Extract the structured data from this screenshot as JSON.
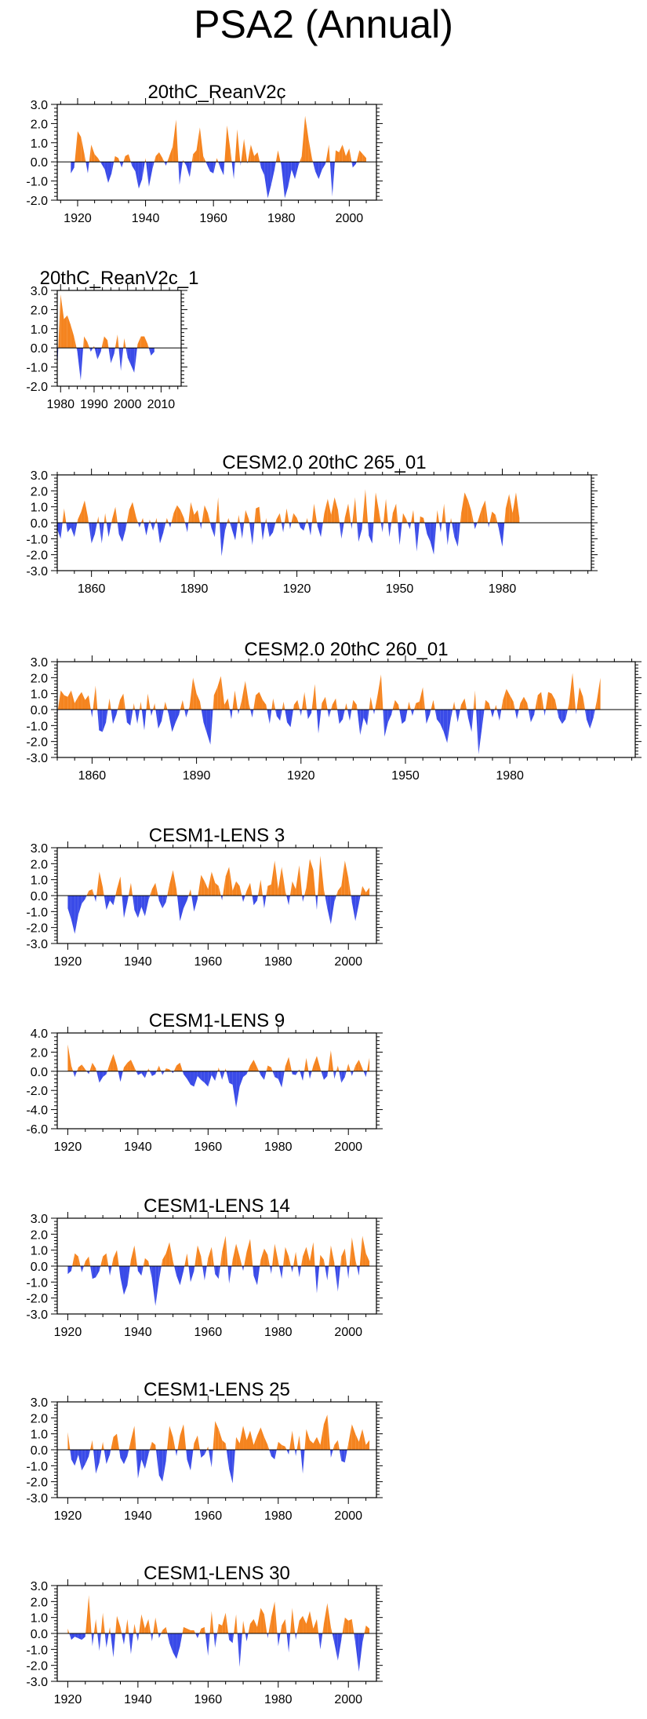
{
  "page": {
    "title": "PSA2 (Annual)"
  },
  "colors": {
    "positive": "#f5841f",
    "negative": "#3a4be8",
    "axis": "#000000"
  },
  "chart_data": [
    {
      "type": "area",
      "title": "20thC_ReanV2c",
      "xlim": [
        1914,
        2008
      ],
      "ylim": [
        -2.0,
        3.0
      ],
      "xticks": [
        1920,
        1940,
        1960,
        1980,
        2000
      ],
      "xtick_labels": [
        "1920",
        "1940",
        "1960",
        "1980",
        "2000"
      ],
      "yticks": [
        -2,
        -1,
        0,
        1,
        2,
        3
      ],
      "ytick_labels": [
        "-2.0",
        "-1.0",
        "0.0",
        "1.0",
        "2.0",
        "3.0"
      ],
      "x_start": 1918,
      "values": [
        -0.6,
        -0.3,
        1.6,
        1.3,
        0.4,
        -0.6,
        0.9,
        0.4,
        0.2,
        -0.1,
        -0.4,
        -1.1,
        -0.6,
        0.3,
        0.2,
        -0.3,
        0.3,
        0.4,
        -0.2,
        -0.5,
        -1.4,
        -0.9,
        0.2,
        -1.3,
        -0.4,
        0.3,
        0.5,
        0.2,
        -0.2,
        0.3,
        0.8,
        2.2,
        -1.2,
        0.1,
        -0.2,
        -0.8,
        0.4,
        0.6,
        1.8,
        0.3,
        -0.1,
        -0.5,
        -0.6,
        0.2,
        -0.3,
        -0.7,
        1.9,
        0.6,
        -0.9,
        1.7,
        -0.2,
        1.2,
        -0.1,
        0.9,
        0.3,
        0.5,
        -0.3,
        -0.7,
        -1.9,
        -1.2,
        -0.4,
        0.6,
        -0.2,
        -1.9,
        -1.3,
        -0.4,
        -0.9,
        -0.2,
        0.3,
        2.4,
        1.2,
        0.2,
        -0.5,
        -0.9,
        -0.4,
        -0.1,
        0.9,
        -1.8,
        0.6,
        0.5,
        0.9,
        0.3,
        0.7,
        -0.3,
        -0.1,
        0.6,
        0.4,
        0.2
      ]
    },
    {
      "type": "area",
      "title": "20thC_ReanV2c_1",
      "xlim": [
        1979,
        2016
      ],
      "ylim": [
        -2.0,
        3.0
      ],
      "xticks": [
        1980,
        1990,
        2000,
        2010
      ],
      "xtick_labels": [
        "1980",
        "1990",
        "2000",
        "2010"
      ],
      "yticks": [
        -2,
        -1,
        0,
        1,
        2,
        3
      ],
      "ytick_labels": [
        "-2.0",
        "-1.0",
        "0.0",
        "1.0",
        "2.0",
        "3.0"
      ],
      "x_start": 1979,
      "values": [
        -1.2,
        2.8,
        1.5,
        1.7,
        1.2,
        0.6,
        -0.2,
        -1.7,
        0.6,
        0.3,
        -0.2,
        0.1,
        -0.6,
        -0.2,
        0.6,
        0.4,
        -0.8,
        -0.3,
        0.7,
        -1.2,
        0.5,
        -0.5,
        -0.9,
        -1.3,
        0.2,
        0.6,
        0.6,
        0.2,
        -0.4,
        -0.2
      ]
    },
    {
      "type": "area",
      "title": "CESM2.0 20thC 265_01",
      "xlim": [
        1850,
        2006
      ],
      "ylim": [
        -3.0,
        3.0
      ],
      "xticks": [
        1860,
        1890,
        1920,
        1950,
        1980
      ],
      "xtick_labels": [
        "1860",
        "1890",
        "1920",
        "1950",
        "1980"
      ],
      "yticks": [
        -3,
        -2,
        -1,
        0,
        1,
        2,
        3
      ],
      "ytick_labels": [
        "-3.0",
        "-2.0",
        "-1.0",
        "0.0",
        "1.0",
        "2.0",
        "3.0"
      ],
      "x_start": 1850,
      "values": [
        -0.4,
        -1.0,
        0.9,
        -0.6,
        -0.3,
        -0.9,
        0.2,
        0.7,
        1.4,
        0.3,
        -1.3,
        -0.7,
        0.4,
        -1.3,
        0.6,
        -0.9,
        0.2,
        1.0,
        -0.7,
        -1.2,
        -0.4,
        0.8,
        1.3,
        0.4,
        -0.3,
        0.3,
        -0.8,
        0.2,
        -0.5,
        0.3,
        -1.3,
        -0.6,
        0.3,
        -0.3,
        0.6,
        1.1,
        0.8,
        0.3,
        -0.6,
        1.3,
        0.5,
        0.8,
        -0.4,
        1.1,
        0.6,
        -0.3,
        -0.9,
        1.6,
        -2.1,
        -0.5,
        0.3,
        -0.4,
        -1.1,
        0.5,
        -1.0,
        0.8,
        0.2,
        -1.4,
        0.9,
        1.0,
        -1.1,
        0.3,
        -0.9,
        -0.6,
        0.2,
        0.6,
        -0.6,
        0.9,
        -0.4,
        0.6,
        0.3,
        -0.3,
        -0.5,
        0.3,
        -0.8,
        1.2,
        -0.2,
        -0.9,
        0.6,
        1.5,
        0.5,
        1.6,
        0.8,
        -1.0,
        0.3,
        1.2,
        -0.4,
        1.6,
        -1.2,
        -0.4,
        2.1,
        -0.8,
        -1.3,
        1.9,
        0.7,
        -0.6,
        1.5,
        -0.9,
        0.6,
        1.2,
        -1.4,
        0.6,
        0.2,
        -0.4,
        0.8,
        -1.8,
        0.4,
        0.3,
        -0.7,
        -1.2,
        -2.0,
        0.8,
        -0.6,
        1.2,
        -1.4,
        0.3,
        -0.9,
        -1.5,
        0.6,
        1.9,
        1.4,
        0.7,
        -0.4,
        0.2,
        0.9,
        1.4,
        -0.3,
        0.7,
        0.5,
        -0.4,
        -1.5,
        0.9,
        1.8,
        0.6,
        1.9,
        0.3
      ]
    },
    {
      "type": "area",
      "title": "CESM2.0 20thC 260_01",
      "xlim": [
        1850,
        2016
      ],
      "ylim": [
        -3.0,
        3.0
      ],
      "xticks": [
        1860,
        1890,
        1920,
        1950,
        1980
      ],
      "xtick_labels": [
        "1860",
        "1890",
        "1920",
        "1950",
        "1980"
      ],
      "yticks": [
        -3,
        -2,
        -1,
        0,
        1,
        2,
        3
      ],
      "ytick_labels": [
        "-3.0",
        "-2.0",
        "-1.0",
        "0.0",
        "1.0",
        "2.0",
        "3.0"
      ],
      "x_start": 1850,
      "values": [
        -0.3,
        1.2,
        0.9,
        0.8,
        1.2,
        0.4,
        0.8,
        1.1,
        0.6,
        0.9,
        -0.5,
        1.5,
        -1.3,
        -1.4,
        -0.8,
        0.7,
        -0.9,
        -0.3,
        0.6,
        1.0,
        -0.8,
        -1.0,
        0.4,
        -0.9,
        0.5,
        -1.3,
        1.0,
        -0.4,
        0.4,
        -1.2,
        -0.7,
        0.5,
        -0.3,
        -1.4,
        -0.8,
        -0.3,
        0.6,
        -0.5,
        0.2,
        2.0,
        1.0,
        0.5,
        -0.8,
        -1.5,
        -2.2,
        0.9,
        1.4,
        2.1,
        0.3,
        0.7,
        -0.6,
        1.2,
        -0.3,
        0.6,
        1.8,
        0.4,
        -0.5,
        0.9,
        1.1,
        0.6,
        0.3,
        -0.9,
        0.7,
        -0.4,
        -0.7,
        0.5,
        -0.8,
        -1.1,
        0.3,
        0.6,
        -0.4,
        1.1,
        -0.6,
        -0.2,
        1.6,
        -1.5,
        0.4,
        0.8,
        -0.5,
        0.3,
        0.7,
        -0.9,
        -0.6,
        0.4,
        -0.7,
        0.6,
        0.3,
        -1.6,
        -0.5,
        -1.0,
        0.8,
        -0.3,
        0.9,
        2.2,
        -1.7,
        -0.8,
        -0.3,
        0.6,
        0.3,
        -0.9,
        -0.7,
        0.5,
        -0.4,
        0.4,
        0.5,
        1.4,
        -0.9,
        -0.3,
        0.6,
        -0.6,
        -0.9,
        -1.4,
        -2.1,
        -0.6,
        0.5,
        -0.8,
        0.3,
        0.7,
        -0.5,
        -1.4,
        1.2,
        -2.8,
        -1.1,
        0.6,
        0.4,
        -0.5,
        0.3,
        -0.7,
        0.6,
        1.3,
        0.9,
        0.5,
        -0.6,
        0.4,
        0.8,
        0.4,
        -0.8,
        -0.3,
        0.9,
        1.1,
        -0.4,
        1.1,
        1.0,
        0.6,
        -0.5,
        -0.9,
        -0.6,
        0.4,
        2.3,
        -0.3,
        1.4,
        0.8,
        -0.6,
        -1.2,
        -0.5,
        0.6,
        2.0
      ]
    },
    {
      "type": "area",
      "title": "CESM1-LENS 3",
      "xlim": [
        1917,
        2008
      ],
      "ylim": [
        -3.0,
        3.0
      ],
      "xticks": [
        1920,
        1940,
        1960,
        1980,
        2000
      ],
      "xtick_labels": [
        "1920",
        "1940",
        "1960",
        "1980",
        "2000"
      ],
      "yticks": [
        -3,
        -2,
        -1,
        0,
        1,
        2,
        3
      ],
      "ytick_labels": [
        "-3.0",
        "-2.0",
        "-1.0",
        "0.0",
        "1.0",
        "2.0",
        "3.0"
      ],
      "x_start": 1920,
      "values": [
        -0.8,
        -1.5,
        -2.4,
        -1.2,
        -0.5,
        -0.2,
        0.3,
        0.4,
        -0.4,
        1.5,
        0.5,
        -0.9,
        -0.3,
        -0.6,
        0.4,
        1.2,
        -1.4,
        -0.4,
        0.8,
        -0.9,
        -1.4,
        -0.7,
        -1.3,
        -0.3,
        0.4,
        0.8,
        -0.3,
        -0.8,
        -0.4,
        0.7,
        1.6,
        0.4,
        -1.6,
        -0.8,
        -0.3,
        0.4,
        -1.0,
        -0.2,
        1.3,
        0.9,
        0.4,
        1.5,
        0.8,
        0.6,
        -0.3,
        1.2,
        1.8,
        0.3,
        0.9,
        0.6,
        -0.4,
        0.3,
        0.8,
        -0.6,
        -0.3,
        1.0,
        -0.8,
        0.6,
        0.7,
        2.2,
        0.4,
        1.8,
        0.3,
        -0.6,
        0.9,
        0.4,
        1.9,
        -0.4,
        0.5,
        2.3,
        1.6,
        -0.9,
        2.5,
        0.4,
        -0.8,
        -1.8,
        -0.4,
        0.3,
        0.6,
        2.2,
        1.1,
        -0.4,
        -1.6,
        -0.5,
        0.6,
        0.2,
        0.5
      ]
    },
    {
      "type": "area",
      "title": "CESM1-LENS 9",
      "xlim": [
        1917,
        2008
      ],
      "ylim": [
        -6.0,
        4.0
      ],
      "xticks": [
        1920,
        1940,
        1960,
        1980,
        2000
      ],
      "xtick_labels": [
        "1920",
        "1940",
        "1960",
        "1980",
        "2000"
      ],
      "yticks": [
        -6,
        -4,
        -2,
        0,
        2,
        4
      ],
      "ytick_labels": [
        "-6.0",
        "-4.0",
        "-2.0",
        "0.0",
        "2.0",
        "4.0"
      ],
      "x_start": 1920,
      "values": [
        2.8,
        0.6,
        -0.6,
        0.4,
        0.7,
        0.2,
        -0.3,
        0.9,
        0.3,
        -1.2,
        -0.6,
        -0.3,
        0.8,
        1.8,
        0.6,
        -1.1,
        0.4,
        0.9,
        1.2,
        0.4,
        -0.4,
        -0.2,
        -0.7,
        0.3,
        -0.5,
        -0.3,
        0.6,
        -0.4,
        0.3,
        0.2,
        -0.2,
        0.6,
        0.9,
        -0.3,
        -0.8,
        -1.4,
        -1.6,
        -0.5,
        -0.9,
        -1.2,
        -1.6,
        -0.4,
        -1.0,
        0.4,
        -0.9,
        0.3,
        -1.2,
        -1.4,
        -3.8,
        -1.6,
        -0.6,
        -0.3,
        0.6,
        1.2,
        0.4,
        -0.4,
        -0.9,
        0.6,
        0.4,
        -0.6,
        -0.8,
        -1.7,
        0.5,
        1.5,
        -0.3,
        -0.4,
        0.2,
        -1.0,
        1.4,
        -0.8,
        0.6,
        1.6,
        0.3,
        -0.9,
        -0.5,
        2.2,
        -0.8,
        0.6,
        -1.2,
        -0.6,
        0.8,
        -0.5,
        0.6,
        1.2,
        0.3,
        -0.6,
        1.4
      ]
    },
    {
      "type": "area",
      "title": "CESM1-LENS 14",
      "xlim": [
        1917,
        2008
      ],
      "ylim": [
        -3.0,
        3.0
      ],
      "xticks": [
        1920,
        1940,
        1960,
        1980,
        2000
      ],
      "xtick_labels": [
        "1920",
        "1940",
        "1960",
        "1980",
        "2000"
      ],
      "yticks": [
        -3,
        -2,
        -1,
        0,
        1,
        2,
        3
      ],
      "ytick_labels": [
        "-3.0",
        "-2.0",
        "-1.0",
        "0.0",
        "1.0",
        "2.0",
        "3.0"
      ],
      "x_start": 1920,
      "values": [
        -0.5,
        -0.3,
        0.8,
        0.6,
        -0.4,
        0.3,
        0.6,
        -0.8,
        -0.7,
        -0.3,
        0.6,
        0.8,
        -0.6,
        0.5,
        1.0,
        -0.7,
        -1.8,
        -1.2,
        0.4,
        1.3,
        -0.3,
        -0.6,
        0.5,
        0.3,
        -0.8,
        -2.5,
        -0.9,
        0.4,
        0.8,
        1.5,
        0.3,
        -0.6,
        -1.2,
        -0.3,
        0.8,
        -1.0,
        -0.3,
        1.3,
        0.6,
        -0.9,
        0.5,
        1.2,
        -0.5,
        -0.8,
        0.9,
        1.9,
        -1.1,
        0.4,
        1.4,
        0.6,
        -0.3,
        0.9,
        1.7,
        -0.6,
        -1.2,
        0.4,
        1.1,
        0.7,
        -0.5,
        1.4,
        0.3,
        -0.8,
        1.2,
        0.6,
        -0.4,
        0.9,
        -0.7,
        0.6,
        1.2,
        0.3,
        1.5,
        -1.7,
        0.7,
        0.4,
        -0.9,
        1.3,
        0.2,
        -1.6,
        0.6,
        1.1,
        -0.8,
        1.8,
        0.4,
        -0.6,
        1.9,
        0.8,
        0.3
      ]
    },
    {
      "type": "area",
      "title": "CESM1-LENS 25",
      "xlim": [
        1917,
        2008
      ],
      "ylim": [
        -3.0,
        3.0
      ],
      "xticks": [
        1920,
        1940,
        1960,
        1980,
        2000
      ],
      "xtick_labels": [
        "1920",
        "1940",
        "1960",
        "1980",
        "2000"
      ],
      "yticks": [
        -3,
        -2,
        -1,
        0,
        1,
        2,
        3
      ],
      "ytick_labels": [
        "-3.0",
        "-2.0",
        "-1.0",
        "0.0",
        "1.0",
        "2.0",
        "3.0"
      ],
      "x_start": 1920,
      "values": [
        1.1,
        -0.6,
        -1.0,
        -0.3,
        -1.3,
        -0.9,
        -0.4,
        0.6,
        -1.5,
        -0.8,
        0.5,
        -0.9,
        -0.3,
        0.8,
        1.0,
        -0.5,
        -0.9,
        -0.4,
        0.6,
        1.5,
        -1.8,
        -0.6,
        -1.2,
        -0.3,
        0.5,
        0.3,
        -1.6,
        -2.0,
        -0.7,
        1.5,
        0.8,
        -0.4,
        0.9,
        1.6,
        -0.6,
        -1.3,
        0.4,
        0.9,
        -0.5,
        -0.3,
        0.2,
        -1.1,
        1.8,
        1.3,
        0.6,
        0.4,
        -1.2,
        -2.1,
        0.8,
        0.4,
        1.5,
        0.6,
        1.2,
        0.3,
        0.9,
        1.4,
        0.8,
        0.3,
        -0.4,
        -0.6,
        0.5,
        0.3,
        0.2,
        -0.3,
        1.2,
        -0.4,
        0.9,
        -1.5,
        1.3,
        0.6,
        0.4,
        0.8,
        0.3,
        1.6,
        2.2,
        -0.5,
        0.3,
        0.6,
        -0.7,
        -0.8,
        0.4,
        1.6,
        1.0,
        0.5,
        1.3,
        0.3,
        0.6
      ]
    },
    {
      "type": "area",
      "title": "CESM1-LENS 30",
      "xlim": [
        1917,
        2008
      ],
      "ylim": [
        -3.0,
        3.0
      ],
      "xticks": [
        1920,
        1940,
        1960,
        1980,
        2000
      ],
      "xtick_labels": [
        "1920",
        "1940",
        "1960",
        "1980",
        "2000"
      ],
      "yticks": [
        -3,
        -2,
        -1,
        0,
        1,
        2,
        3
      ],
      "ytick_labels": [
        "-3.0",
        "-2.0",
        "-1.0",
        "0.0",
        "1.0",
        "2.0",
        "3.0"
      ],
      "x_start": 1920,
      "values": [
        0.3,
        -0.4,
        -0.2,
        -0.3,
        -0.4,
        -0.2,
        2.4,
        -0.8,
        0.9,
        -1.1,
        1.3,
        -0.9,
        0.4,
        -1.5,
        1.1,
        0.4,
        -0.7,
        0.9,
        -1.3,
        0.6,
        -0.5,
        1.2,
        0.3,
        0.9,
        -0.5,
        1.0,
        -0.3,
        0.2,
        0.4,
        -0.6,
        -1.2,
        -1.6,
        -0.8,
        0.4,
        0.3,
        0.2,
        0.2,
        -0.3,
        0.3,
        0.4,
        -1.4,
        1.4,
        -0.9,
        0.6,
        0.5,
        1.3,
        -0.4,
        -0.6,
        1.2,
        -2.1,
        0.8,
        -0.5,
        0.6,
        0.9,
        0.4,
        1.6,
        1.2,
        -0.3,
        1.0,
        2.0,
        -0.8,
        0.5,
        0.9,
        -1.2,
        1.6,
        -0.4,
        0.8,
        1.1,
        0.6,
        1.4,
        0.3,
        0.9,
        -1.0,
        0.6,
        1.9,
        0.4,
        -0.6,
        -1.7,
        -0.4,
        1.0,
        0.8,
        0.9,
        -0.6,
        -2.4,
        -0.6,
        0.5,
        0.3
      ]
    }
  ]
}
